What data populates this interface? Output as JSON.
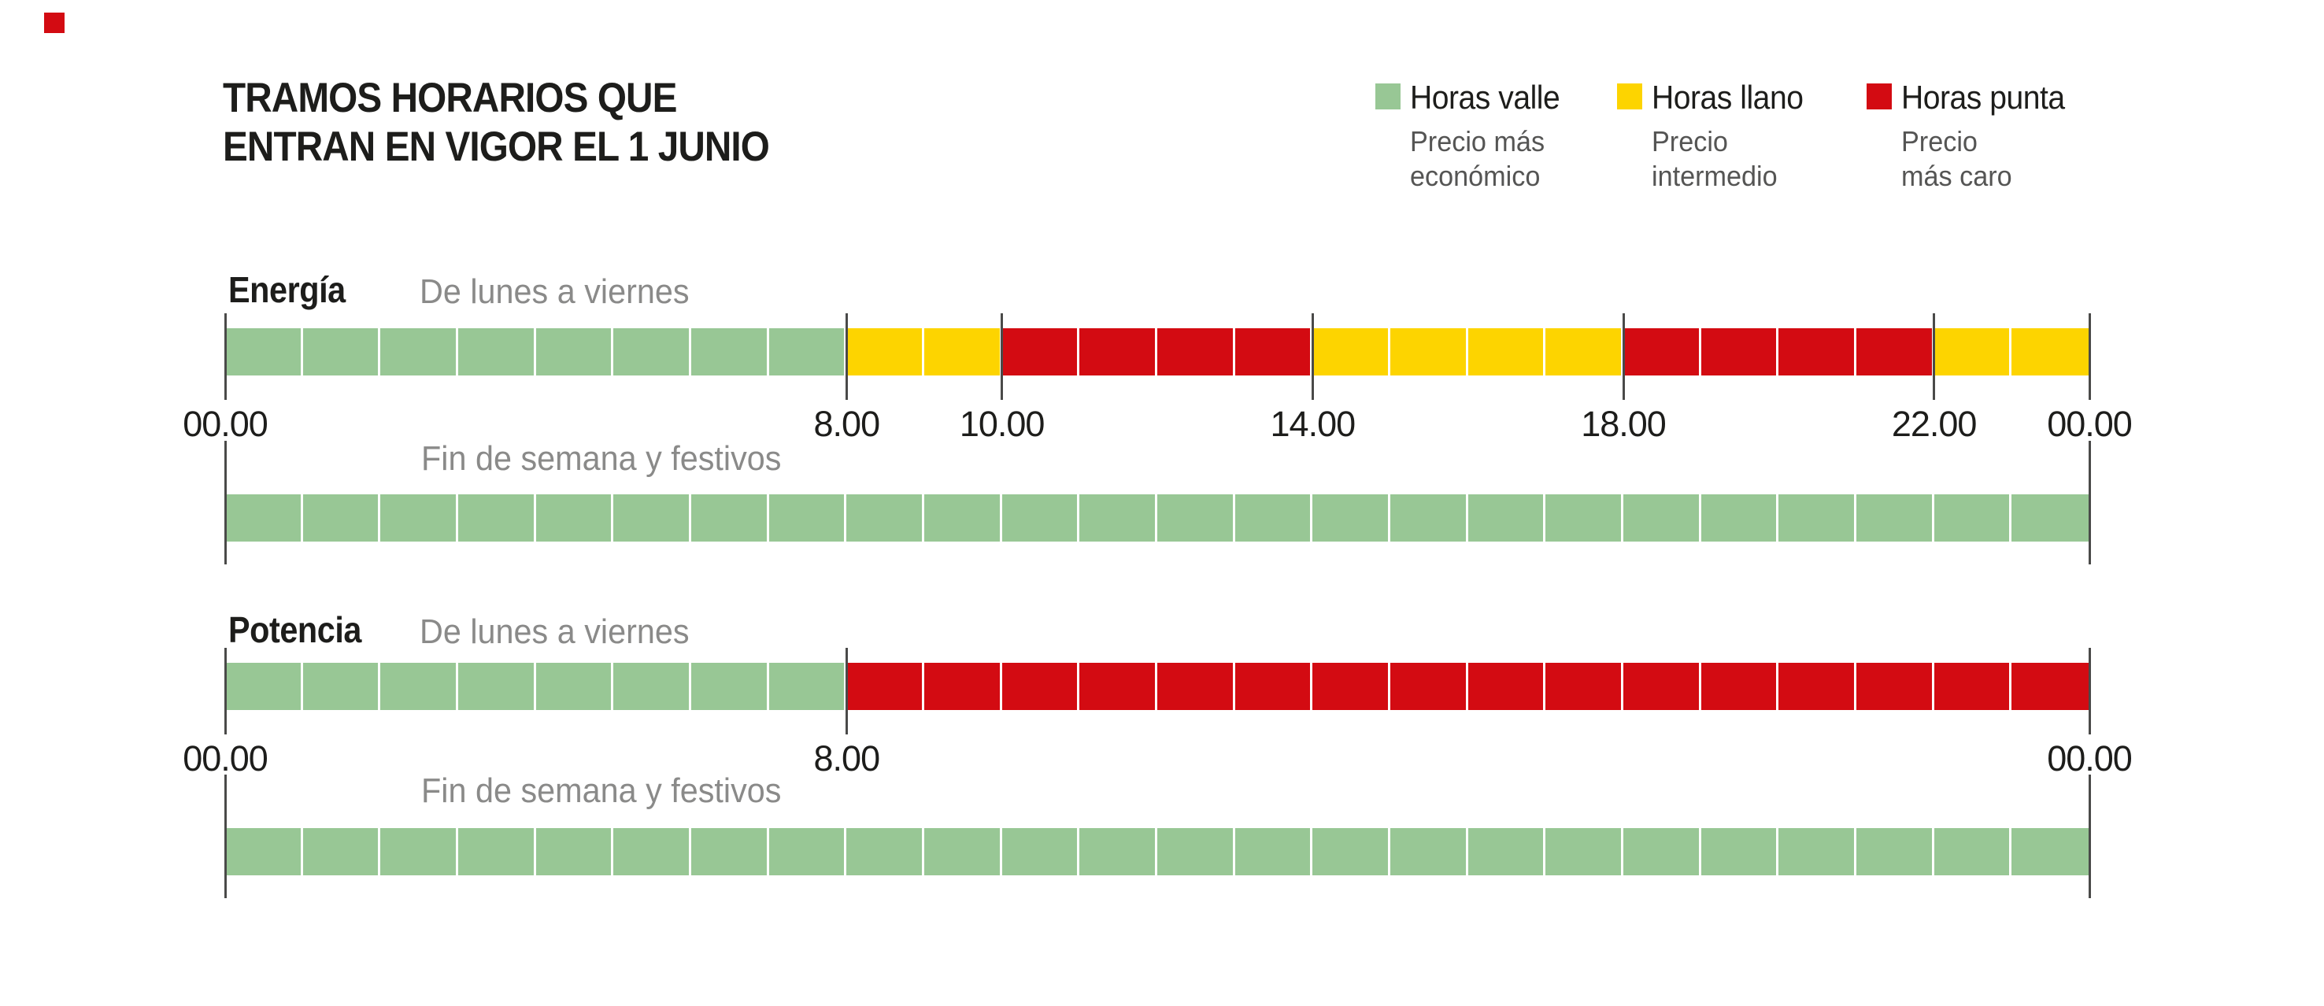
{
  "page": {
    "background": "#ffffff"
  },
  "brand_mark": {
    "color": "#d30b12"
  },
  "title": {
    "lines": [
      "TRAMOS HORARIOS QUE",
      "ENTRAN EN VIGOR EL 1 JUNIO"
    ]
  },
  "colors": {
    "valle": "#98c795",
    "llano": "#fdd400",
    "punta": "#d30b12",
    "tick": "#4a4a49",
    "text": "#1d1d1b",
    "muted": "#8a8a89",
    "legend_sub": "#555554"
  },
  "legend": {
    "items": [
      {
        "type": "valle",
        "label": "Horas valle",
        "sub_lines": [
          "Precio más",
          "económico"
        ]
      },
      {
        "type": "llano",
        "label": "Horas llano",
        "sub_lines": [
          "Precio",
          "intermedio"
        ]
      },
      {
        "type": "punta",
        "label": "Horas punta",
        "sub_lines": [
          "Precio",
          "más caro"
        ]
      }
    ]
  },
  "chart_data": {
    "type": "bar",
    "subtype": "horizontal-time-bands-stacked",
    "title": "TRAMOS HORARIOS QUE ENTRAN EN VIGOR EL 1 JUNIO",
    "x_unit": "hora del día",
    "xlim": [
      0,
      24
    ],
    "grid": "white separators every hour",
    "legend_position": "top-right",
    "band_types": {
      "valle": "Horas valle — Precio más económico",
      "llano": "Horas llano — Precio intermedio",
      "punta": "Horas punta — Precio más caro"
    },
    "groups": [
      {
        "name": "Energía",
        "bars": [
          {
            "label": "De lunes a viernes",
            "segments": [
              {
                "from": 0,
                "to": 8,
                "type": "valle"
              },
              {
                "from": 8,
                "to": 10,
                "type": "llano"
              },
              {
                "from": 10,
                "to": 14,
                "type": "punta"
              },
              {
                "from": 14,
                "to": 18,
                "type": "llano"
              },
              {
                "from": 18,
                "to": 22,
                "type": "punta"
              },
              {
                "from": 22,
                "to": 24,
                "type": "llano"
              }
            ],
            "ticks": [
              {
                "hour": 0,
                "label": "00.00"
              },
              {
                "hour": 8,
                "label": "8.00"
              },
              {
                "hour": 10,
                "label": "10.00"
              },
              {
                "hour": 14,
                "label": "14.00"
              },
              {
                "hour": 18,
                "label": "18.00"
              },
              {
                "hour": 22,
                "label": "22.00"
              },
              {
                "hour": 24,
                "label": "00.00"
              }
            ]
          },
          {
            "label": "Fin de semana y festivos",
            "segments": [
              {
                "from": 0,
                "to": 24,
                "type": "valle"
              }
            ],
            "ticks": [
              {
                "hour": 0,
                "label": ""
              },
              {
                "hour": 24,
                "label": ""
              }
            ]
          }
        ]
      },
      {
        "name": "Potencia",
        "bars": [
          {
            "label": "De lunes a viernes",
            "segments": [
              {
                "from": 0,
                "to": 8,
                "type": "valle"
              },
              {
                "from": 8,
                "to": 24,
                "type": "punta"
              }
            ],
            "ticks": [
              {
                "hour": 0,
                "label": "00.00"
              },
              {
                "hour": 8,
                "label": "8.00"
              },
              {
                "hour": 24,
                "label": "00.00"
              }
            ]
          },
          {
            "label": "Fin de semana y festivos",
            "segments": [
              {
                "from": 0,
                "to": 24,
                "type": "valle"
              }
            ],
            "ticks": [
              {
                "hour": 0,
                "label": ""
              },
              {
                "hour": 24,
                "label": ""
              }
            ]
          }
        ]
      }
    ]
  }
}
